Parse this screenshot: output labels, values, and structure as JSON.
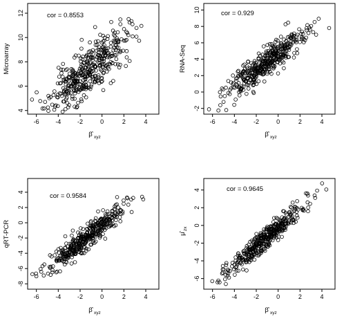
{
  "chart_data": [
    {
      "type": "scatter",
      "xlabel": "β̂xyz",
      "xlabel_main": "β̂",
      "xlabel_sub": "xyz",
      "ylabel": "Microarray",
      "annotation": "cor = 0.8553",
      "cor": 0.8553,
      "xlim": [
        -6.8,
        5.2
      ],
      "ylim": [
        3.7,
        12.8
      ],
      "xticks": [
        -6,
        -4,
        -2,
        0,
        2,
        4
      ],
      "yticks": [
        4,
        6,
        8,
        10,
        12
      ],
      "slope": 0.74,
      "intercept": 8.2,
      "noise": 1.0,
      "n": 420,
      "seed": 11
    },
    {
      "type": "scatter",
      "xlabel": "β̂xyz",
      "xlabel_main": "β̂",
      "xlabel_sub": "xyz",
      "ylabel": "RNA-Seq",
      "annotation": "cor = 0.929",
      "cor": 0.929,
      "xlim": [
        -6.8,
        5.2
      ],
      "ylim": [
        -2.7,
        10.8
      ],
      "xticks": [
        -6,
        -4,
        -2,
        0,
        2,
        4
      ],
      "yticks": [
        -2,
        0,
        2,
        4,
        6,
        8,
        10
      ],
      "slope": 1.0,
      "intercept": 4.6,
      "noise": 0.9,
      "n": 420,
      "seed": 23
    },
    {
      "type": "scatter",
      "xlabel": "β̂xyz",
      "xlabel_main": "β̂",
      "xlabel_sub": "xyz",
      "ylabel": "qRT-PCR",
      "annotation": "cor = 0.9584",
      "cor": 0.9584,
      "xlim": [
        -6.8,
        5.2
      ],
      "ylim": [
        -8.7,
        5.8
      ],
      "xticks": [
        -6,
        -4,
        -2,
        0,
        2,
        4
      ],
      "yticks": [
        -8,
        -6,
        -4,
        -2,
        0,
        2,
        4
      ],
      "slope": 1.13,
      "intercept": -0.3,
      "noise": 0.75,
      "n": 420,
      "seed": 37
    },
    {
      "type": "scatter",
      "xlabel": "β̂xyz",
      "xlabel_main": "β̂",
      "xlabel_sub": "xyz",
      "ylabel": "μ̂zx",
      "ylabel_main": "μ̂",
      "ylabel_sub": "zx",
      "annotation": "cor = 0.9645",
      "cor": 0.9645,
      "xlim": [
        -6.8,
        5.2
      ],
      "ylim": [
        -7.2,
        5.3
      ],
      "xticks": [
        -6,
        -4,
        -2,
        0,
        2,
        4
      ],
      "yticks": [
        -6,
        -4,
        -2,
        0,
        2,
        4
      ],
      "slope": 1.04,
      "intercept": -0.3,
      "noise": 0.62,
      "n": 420,
      "seed": 53
    }
  ]
}
